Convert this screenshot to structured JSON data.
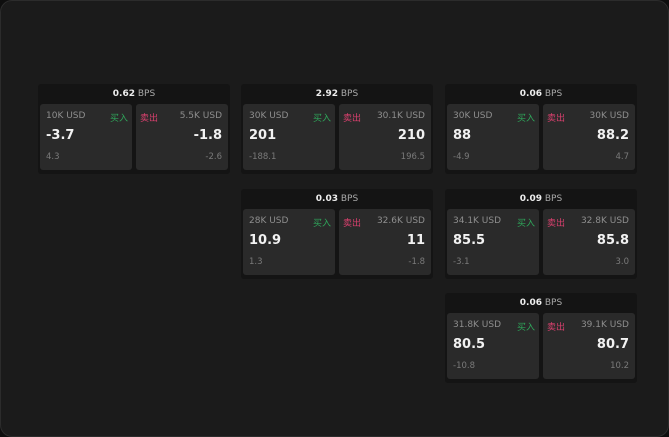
{
  "unit": "BPS",
  "buy_label": "买入",
  "sell_label": "卖出",
  "colors": {
    "buy": "#2fa55a",
    "sell": "#d9406e"
  },
  "cards": [
    {
      "spread": "0.62",
      "buy": {
        "amount": "10K USD",
        "price": "-3.7",
        "change": "4.3"
      },
      "sell": {
        "amount": "5.5K USD",
        "price": "-1.8",
        "change": "-2.6"
      }
    },
    {
      "spread": "2.92",
      "buy": {
        "amount": "30K USD",
        "price": "201",
        "change": "-188.1"
      },
      "sell": {
        "amount": "30.1K USD",
        "price": "210",
        "change": "196.5"
      }
    },
    {
      "spread": "0.06",
      "buy": {
        "amount": "30K USD",
        "price": "88",
        "change": "-4.9"
      },
      "sell": {
        "amount": "30K USD",
        "price": "88.2",
        "change": "4.7"
      }
    },
    {
      "spread": "0.03",
      "buy": {
        "amount": "28K USD",
        "price": "10.9",
        "change": "1.3"
      },
      "sell": {
        "amount": "32.6K USD",
        "price": "11",
        "change": "-1.8"
      }
    },
    {
      "spread": "0.09",
      "buy": {
        "amount": "34.1K USD",
        "price": "85.5",
        "change": "-3.1"
      },
      "sell": {
        "amount": "32.8K USD",
        "price": "85.8",
        "change": "3.0"
      }
    },
    {
      "spread": "0.06",
      "buy": {
        "amount": "31.8K USD",
        "price": "80.5",
        "change": "-10.8"
      },
      "sell": {
        "amount": "39.1K USD",
        "price": "80.7",
        "change": "10.2"
      }
    }
  ]
}
